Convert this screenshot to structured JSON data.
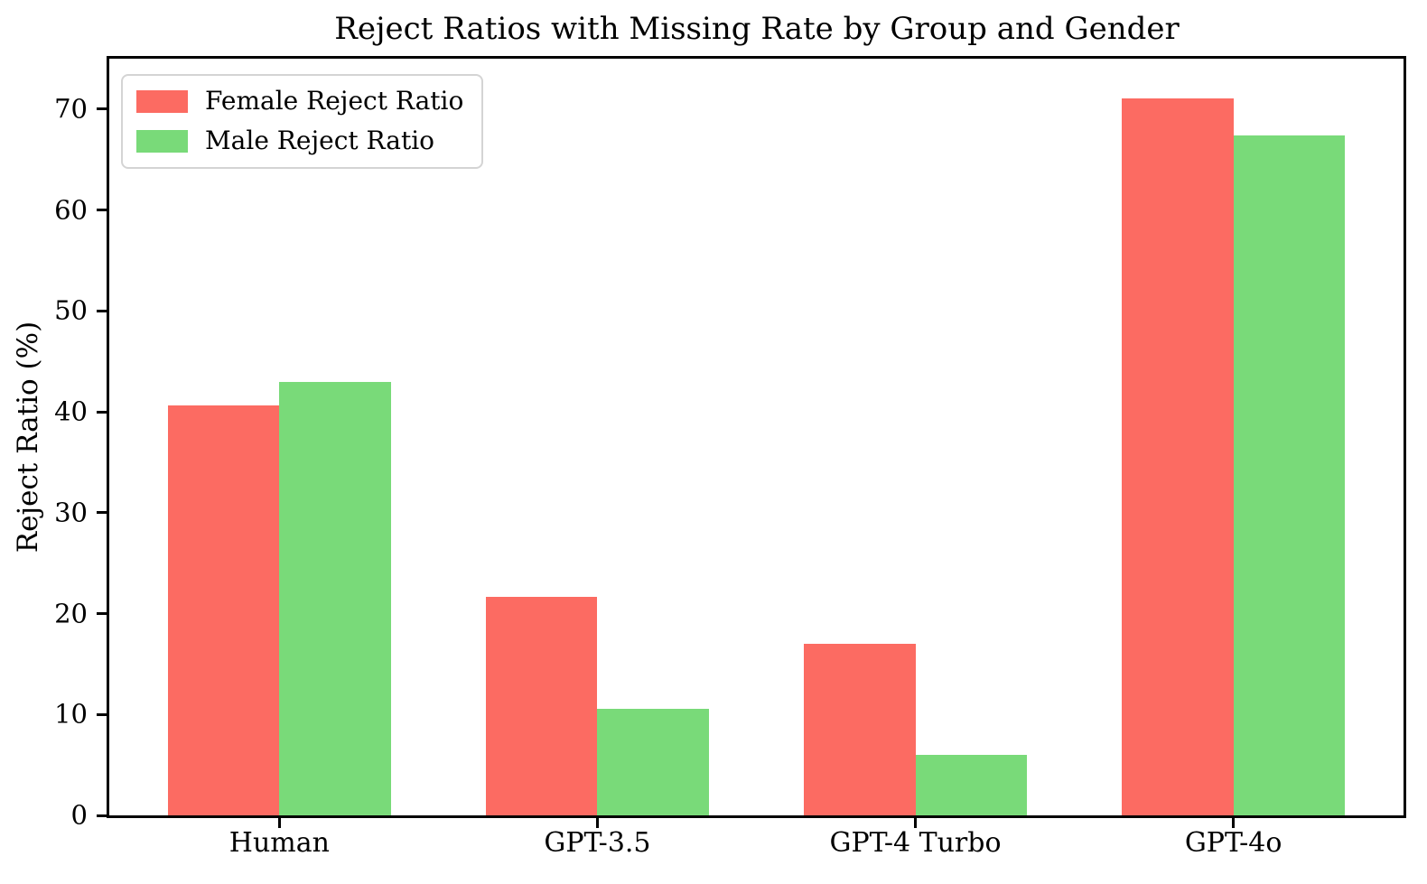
{
  "chart_data": {
    "type": "bar",
    "title": "Reject Ratios with Missing Rate by Group and Gender",
    "xlabel": "",
    "ylabel": "Reject Ratio (%)",
    "categories": [
      "Human",
      "GPT-3.5",
      "GPT-4 Turbo",
      "GPT-4o"
    ],
    "series": [
      {
        "name": "Female Reject Ratio",
        "color": "#fc6b62",
        "values": [
          40.6,
          21.7,
          17.0,
          71.1
        ]
      },
      {
        "name": "Male Reject Ratio",
        "color": "#79da79",
        "values": [
          43.0,
          10.6,
          6.0,
          67.4
        ]
      }
    ],
    "ylim": [
      0,
      75
    ],
    "yticks": [
      0,
      10,
      20,
      30,
      40,
      50,
      60,
      70
    ],
    "bar_width": 0.35,
    "legend_position": "upper left",
    "grid": false,
    "background_color": "#ffffff",
    "text_color": "#000000"
  }
}
